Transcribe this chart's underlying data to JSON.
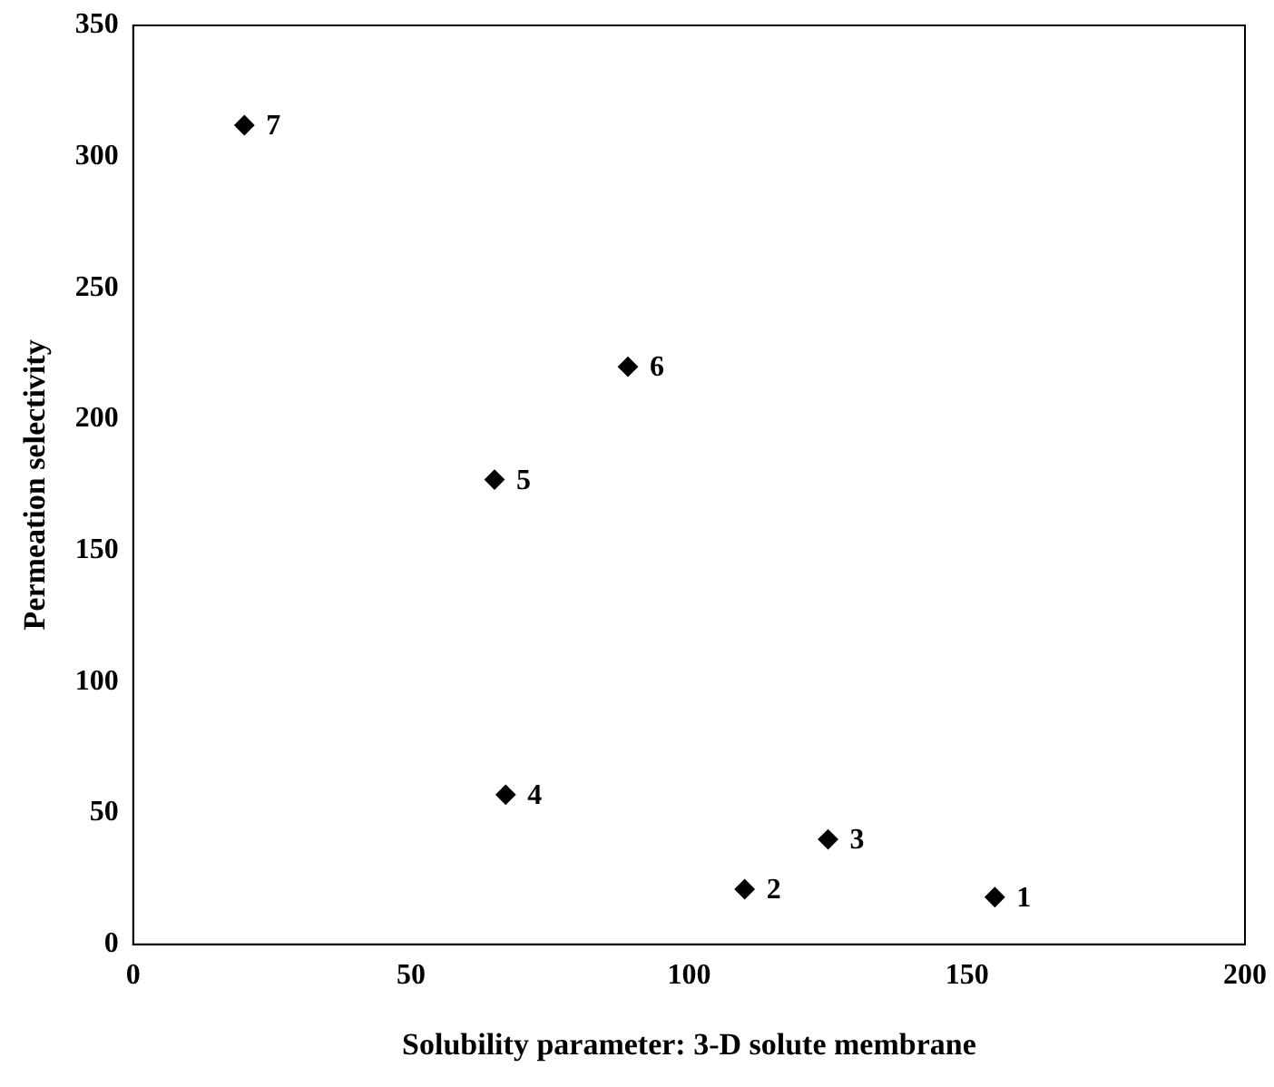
{
  "chart_data": {
    "type": "scatter",
    "xlabel": "Solubility parameter: 3-D solute membrane",
    "ylabel": "Permeation selectivity",
    "x": [
      155,
      110,
      125,
      67,
      65,
      89,
      20
    ],
    "series": [
      {
        "color": "#000000",
        "values": [
          18,
          21,
          40,
          57,
          177,
          220,
          312
        ]
      }
    ],
    "marker": "diamond",
    "xlim": [
      0,
      200
    ],
    "xticks": [
      0,
      50,
      100,
      150,
      200
    ],
    "ylim": [
      0,
      350
    ],
    "yticks": [
      0,
      50,
      100,
      150,
      200,
      250,
      300,
      350
    ],
    "grid": false,
    "legend": false,
    "annotations": [
      {
        "text": "1",
        "x": 155,
        "y": 18
      },
      {
        "text": "2",
        "x": 110,
        "y": 21
      },
      {
        "text": "3",
        "x": 125,
        "y": 40
      },
      {
        "text": "4",
        "x": 67,
        "y": 57
      },
      {
        "text": "5",
        "x": 65,
        "y": 177
      },
      {
        "text": "6",
        "x": 89,
        "y": 220
      },
      {
        "text": "7",
        "x": 20,
        "y": 312
      }
    ]
  }
}
